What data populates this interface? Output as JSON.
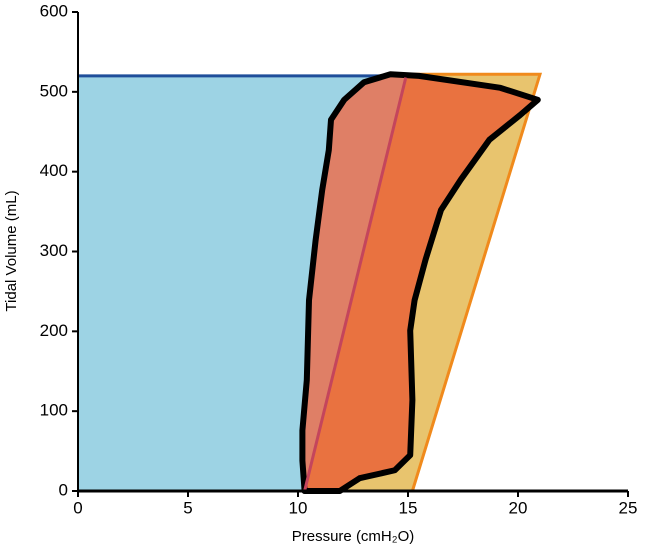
{
  "chart_data": {
    "type": "pv-loop",
    "xlabel": "Pressure (cmH₂O)",
    "ylabel": "Tidal Volume (mL)",
    "xlim": [
      0,
      25
    ],
    "ylim": [
      0,
      600
    ],
    "xticks": [
      0,
      5,
      10,
      15,
      20,
      25
    ],
    "yticks": [
      0,
      100,
      200,
      300,
      400,
      500,
      600
    ],
    "series": [
      {
        "role": "fill",
        "color": "#9dd3e4",
        "x": [
          0,
          0,
          15,
          15
        ],
        "y": [
          0,
          520,
          520,
          0
        ]
      },
      {
        "role": "fill",
        "color": "#e8c46e",
        "x": [
          10.3,
          15.2,
          21,
          15
        ],
        "y": [
          0,
          0,
          522,
          522
        ]
      },
      {
        "role": "line",
        "color": "#f08a1c",
        "x": [
          15.2,
          21,
          15
        ],
        "y": [
          0,
          522,
          522
        ]
      },
      {
        "role": "line",
        "color": "#1f4e9a",
        "x": [
          0,
          14.5
        ],
        "y": [
          520,
          520
        ]
      },
      {
        "role": "loop",
        "color": "#df7f66",
        "inner_color": "#e97240",
        "x": [
          10.3,
          10.2,
          10.2,
          10.4,
          10.5,
          10.8,
          11.1,
          11.4,
          11.5,
          12.1,
          13.0,
          14.2,
          15.5,
          19.2,
          20.9,
          20.1,
          18.7,
          17.4,
          16.5,
          15.8,
          15.3,
          15.1,
          15.2,
          15.1,
          14.4,
          12.8,
          11.9
        ],
        "y": [
          0,
          38,
          76,
          139,
          239,
          314,
          377,
          427,
          465,
          490,
          512,
          522,
          520,
          505,
          490,
          471,
          440,
          390,
          352,
          290,
          239,
          201,
          114,
          45,
          26,
          16,
          0
        ]
      },
      {
        "role": "line",
        "color": "#c4455c",
        "x": [
          10.3,
          14.9
        ],
        "y": [
          0,
          518
        ]
      }
    ]
  }
}
